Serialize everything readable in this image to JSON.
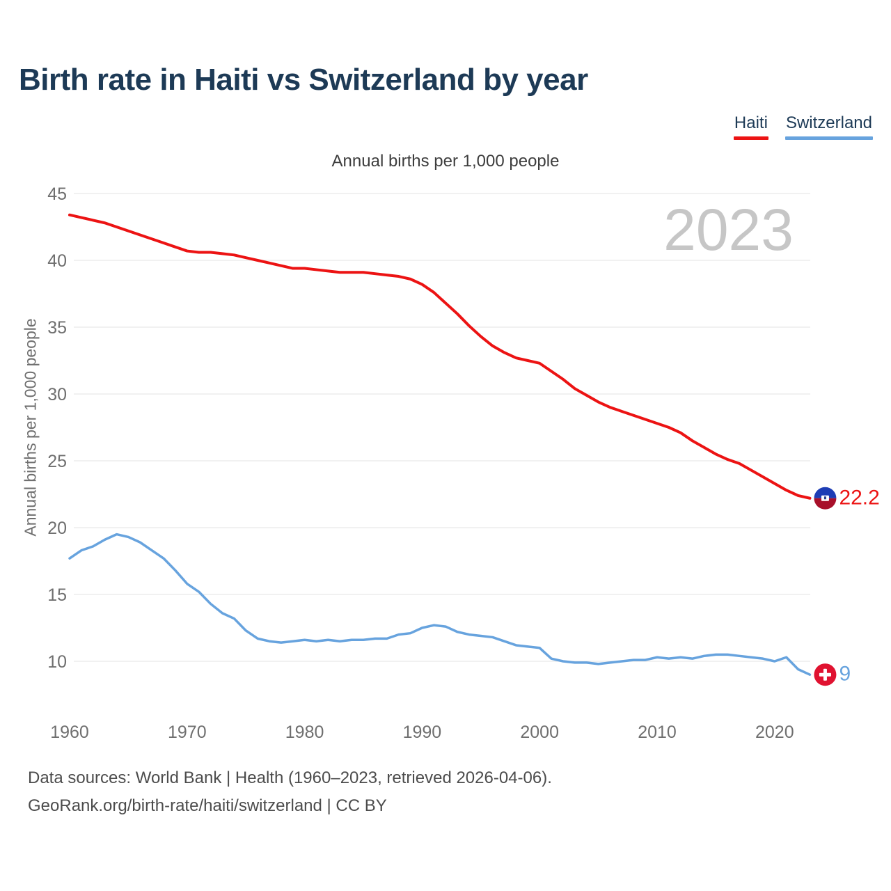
{
  "chart_data": {
    "type": "line",
    "title": "Birth rate in Haiti vs Switzerland by year",
    "subtitle": "Annual births per 1,000 people",
    "ylabel": "Annual births per 1,000 people",
    "watermark_year": "2023",
    "legend_position": "top-right",
    "grid": "horizontal-only",
    "ylim": [
      8,
      46
    ],
    "xlim": [
      1960,
      2023
    ],
    "y_ticks": [
      10,
      15,
      20,
      25,
      30,
      35,
      40,
      45
    ],
    "x_ticks": [
      "1960",
      "1970",
      "1980",
      "1990",
      "2000",
      "2010",
      "2020"
    ],
    "x": [
      1960,
      1961,
      1962,
      1963,
      1964,
      1965,
      1966,
      1967,
      1968,
      1969,
      1970,
      1971,
      1972,
      1973,
      1974,
      1975,
      1976,
      1977,
      1978,
      1979,
      1980,
      1981,
      1982,
      1983,
      1984,
      1985,
      1986,
      1987,
      1988,
      1989,
      1990,
      1991,
      1992,
      1993,
      1994,
      1995,
      1996,
      1997,
      1998,
      1999,
      2000,
      2001,
      2002,
      2003,
      2004,
      2005,
      2006,
      2007,
      2008,
      2009,
      2010,
      2011,
      2012,
      2013,
      2014,
      2015,
      2016,
      2017,
      2018,
      2019,
      2020,
      2021,
      2022,
      2023
    ],
    "series": [
      {
        "name": "Haiti",
        "color": "#ec1313",
        "values": [
          43.4,
          43.2,
          43.0,
          42.8,
          42.5,
          42.2,
          41.9,
          41.6,
          41.3,
          41.0,
          40.7,
          40.6,
          40.6,
          40.5,
          40.4,
          40.2,
          40.0,
          39.8,
          39.6,
          39.4,
          39.4,
          39.3,
          39.2,
          39.1,
          39.1,
          39.1,
          39.0,
          38.9,
          38.8,
          38.6,
          38.2,
          37.6,
          36.8,
          36.0,
          35.1,
          34.3,
          33.6,
          33.1,
          32.7,
          32.5,
          32.3,
          31.7,
          31.1,
          30.4,
          29.9,
          29.4,
          29.0,
          28.7,
          28.4,
          28.1,
          27.8,
          27.5,
          27.1,
          26.5,
          26.0,
          25.5,
          25.1,
          24.8,
          24.3,
          23.8,
          23.3,
          22.8,
          22.4,
          22.2
        ]
      },
      {
        "name": "Switzerland",
        "color": "#67a3de",
        "values": [
          17.7,
          18.3,
          18.6,
          19.1,
          19.5,
          19.3,
          18.9,
          18.3,
          17.7,
          16.8,
          15.8,
          15.2,
          14.3,
          13.6,
          13.2,
          12.3,
          11.7,
          11.5,
          11.4,
          11.5,
          11.6,
          11.5,
          11.6,
          11.5,
          11.6,
          11.6,
          11.7,
          11.7,
          12.0,
          12.1,
          12.5,
          12.7,
          12.6,
          12.2,
          12.0,
          11.9,
          11.8,
          11.5,
          11.2,
          11.1,
          11.0,
          10.2,
          10.0,
          9.9,
          9.9,
          9.8,
          9.9,
          10.0,
          10.1,
          10.1,
          10.3,
          10.2,
          10.3,
          10.2,
          10.4,
          10.5,
          10.5,
          10.4,
          10.3,
          10.2,
          10.0,
          10.3,
          9.4,
          9.0
        ]
      }
    ],
    "end_labels": {
      "haiti": "22.2",
      "switzerland": "9"
    }
  },
  "footer": {
    "line1": "Data sources: World Bank | Health (1960–2023, retrieved 2026-04-06).",
    "line2": "GeoRank.org/birth-rate/haiti/switzerland | CC BY"
  },
  "colors": {
    "title_text": "#1d3a56",
    "gridline": "#e3e3e3",
    "tick_label": "#6f6f6f",
    "watermark": "#c6c6c6",
    "haiti_line": "#ec1313",
    "switzerland_line": "#67a3de",
    "haiti_flag_blue": "#1d3db5",
    "haiti_flag_red": "#a8102a",
    "swiss_flag_red": "#e01230"
  }
}
